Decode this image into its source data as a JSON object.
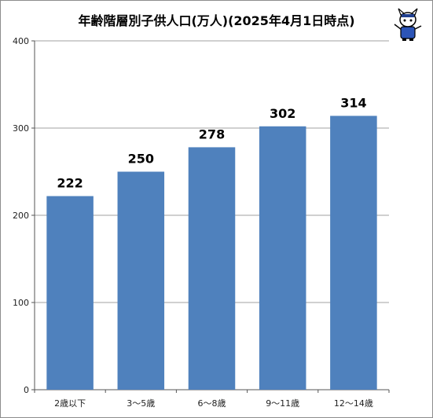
{
  "chart_data": {
    "type": "bar",
    "title": "年齢階層別子供人口(万人)(2025年4月1日時点)",
    "categories": [
      "2歳以下",
      "3～5歳",
      "6～8歳",
      "9～11歳",
      "12～14歳"
    ],
    "values": [
      222,
      250,
      278,
      302,
      314
    ],
    "data_labels": [
      "222",
      "250",
      "278",
      "302",
      "314"
    ],
    "ylim": [
      0,
      400
    ],
    "yticks": [
      0,
      100,
      200,
      300,
      400
    ],
    "ytick_labels": [
      "0",
      "100",
      "200",
      "300",
      "400"
    ],
    "grid": true,
    "legend": "none",
    "bar_color": "#4f81bd",
    "grid_color": "#a0a0a0"
  }
}
